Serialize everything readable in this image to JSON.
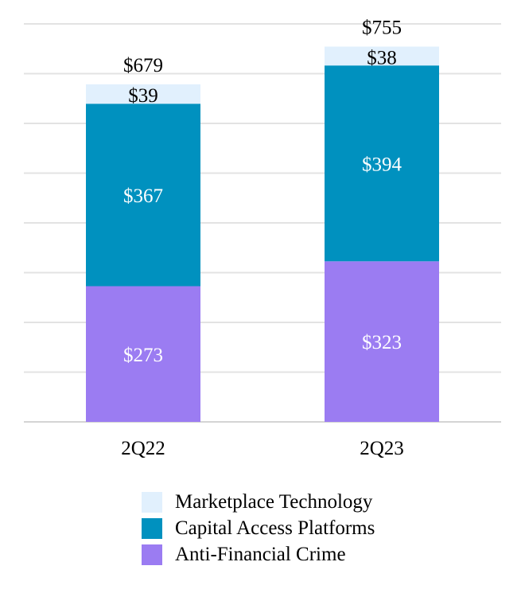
{
  "chart_data": {
    "type": "bar",
    "stacked": true,
    "categories": [
      "2Q22",
      "2Q23"
    ],
    "series": [
      {
        "name": "Anti-Financial Crime",
        "values": [
          273,
          323
        ],
        "labels": [
          "$273",
          "$323"
        ],
        "color": "#9b7cf2"
      },
      {
        "name": "Capital Access Platforms",
        "values": [
          367,
          394
        ],
        "labels": [
          "$367",
          "$394"
        ],
        "color": "#0091bf"
      },
      {
        "name": "Marketplace Technology",
        "values": [
          39,
          38
        ],
        "labels": [
          "$39",
          "$38"
        ],
        "color": "#e1f0fd"
      }
    ],
    "totals": [
      679,
      755
    ],
    "total_labels": [
      "$679",
      "$755"
    ],
    "ylim": [
      0,
      760
    ],
    "grid": true,
    "legend_position": "bottom",
    "title": "",
    "xlabel": "",
    "ylabel": ""
  },
  "legend": {
    "items": [
      {
        "label": "Marketplace Technology",
        "color": "#e1f0fd"
      },
      {
        "label": "Capital Access Platforms",
        "color": "#0091bf"
      },
      {
        "label": "Anti-Financial Crime",
        "color": "#9b7cf2"
      }
    ]
  }
}
